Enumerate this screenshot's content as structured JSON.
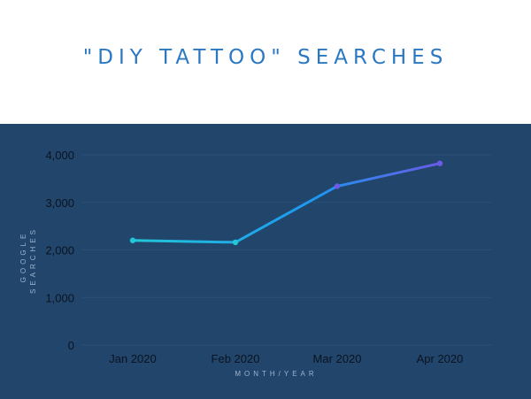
{
  "title": "\"DIY TATTOO\" SEARCHES",
  "chart_data": {
    "type": "line",
    "title": "\"DIY TATTOO\" SEARCHES",
    "xlabel": "MONTH/YEAR",
    "ylabel": "GOOGLE SEARCHES",
    "categories": [
      "Jan 2020",
      "Feb 2020",
      "Mar 2020",
      "Apr 2020"
    ],
    "series": [
      {
        "values": [
          2200,
          2160,
          3340,
          3820
        ]
      }
    ],
    "ylim": [
      0,
      4000
    ],
    "yticks": [
      0,
      1000,
      2000,
      3000,
      4000
    ],
    "ytick_labels": [
      "0",
      "1,000",
      "2,000",
      "3,000",
      "4,000"
    ],
    "grid": true,
    "colors": {
      "panel_background": "#21456b",
      "title": "#2b78c2",
      "line_gradient_start": "#22c7d9",
      "line_gradient_mid": "#1e96f0",
      "line_gradient_end": "#6a5ae6",
      "grid": "#2b5078"
    }
  }
}
